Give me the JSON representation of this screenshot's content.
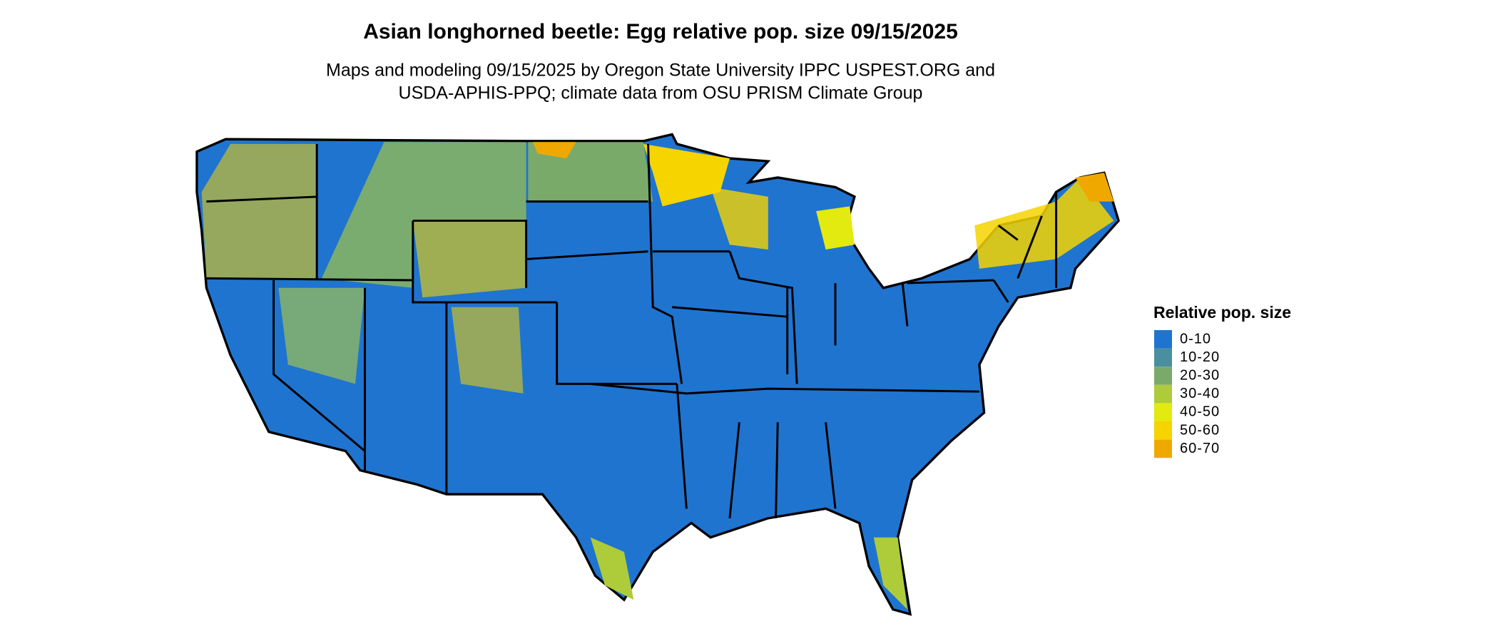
{
  "title": "Asian longhorned beetle: Egg relative pop. size 09/15/2025",
  "subtitle": [
    "Maps and modeling 09/15/2025 by Oregon State University IPPC USPEST.ORG and",
    "USDA-APHIS-PPQ; climate data from OSU PRISM Climate Group"
  ],
  "legend": {
    "title": "Relative pop. size",
    "items": [
      {
        "label": "0-10",
        "color": "#1f74d0"
      },
      {
        "label": "10-20",
        "color": "#4a8fa0"
      },
      {
        "label": "20-30",
        "color": "#7aaa6a"
      },
      {
        "label": "30-40",
        "color": "#aecb3a"
      },
      {
        "label": "40-50",
        "color": "#e2ea10"
      },
      {
        "label": "50-60",
        "color": "#f5d400"
      },
      {
        "label": "60-70",
        "color": "#efa800"
      }
    ]
  }
}
